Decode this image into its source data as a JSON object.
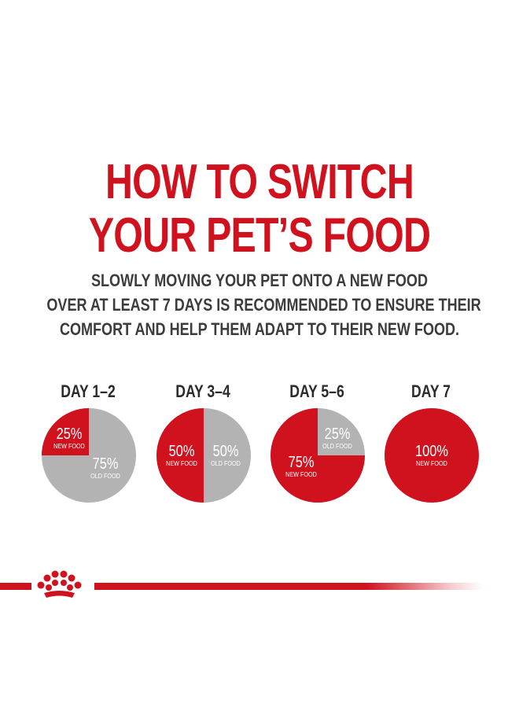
{
  "title": {
    "line1": "HOW TO SWITCH",
    "line2": "YOUR PET’S FOOD"
  },
  "subtitle": {
    "line1": "SLOWLY MOVING YOUR PET ONTO A NEW FOOD",
    "line2": "OVER AT LEAST 7 DAYS IS RECOMMENDED TO ENSURE THEIR",
    "line3": "COMFORT AND HELP THEM ADAPT TO THEIR NEW FOOD."
  },
  "colors": {
    "new_food": "#d0121f",
    "old_food": "#b3b3b3",
    "heading": "#d0121f",
    "text": "#3c3c3c"
  },
  "schedule": [
    {
      "day": "DAY 1–2",
      "new_label": "25%",
      "new_caption": "NEW FOOD",
      "old_label": "75%",
      "old_caption": "OLD FOOD",
      "new_fraction": 0.25
    },
    {
      "day": "DAY 3–4",
      "new_label": "50%",
      "new_caption": "NEW FOOD",
      "old_label": "50%",
      "old_caption": "OLD FOOD",
      "new_fraction": 0.5
    },
    {
      "day": "DAY 5–6",
      "new_label": "75%",
      "new_caption": "NEW FOOD",
      "old_label": "25%",
      "old_caption": "OLD FOOD",
      "new_fraction": 0.75
    },
    {
      "day": "DAY 7",
      "new_label": "100%",
      "new_caption": "NEW FOOD",
      "new_fraction": 1.0
    }
  ],
  "logo_icon": "crown-icon"
}
